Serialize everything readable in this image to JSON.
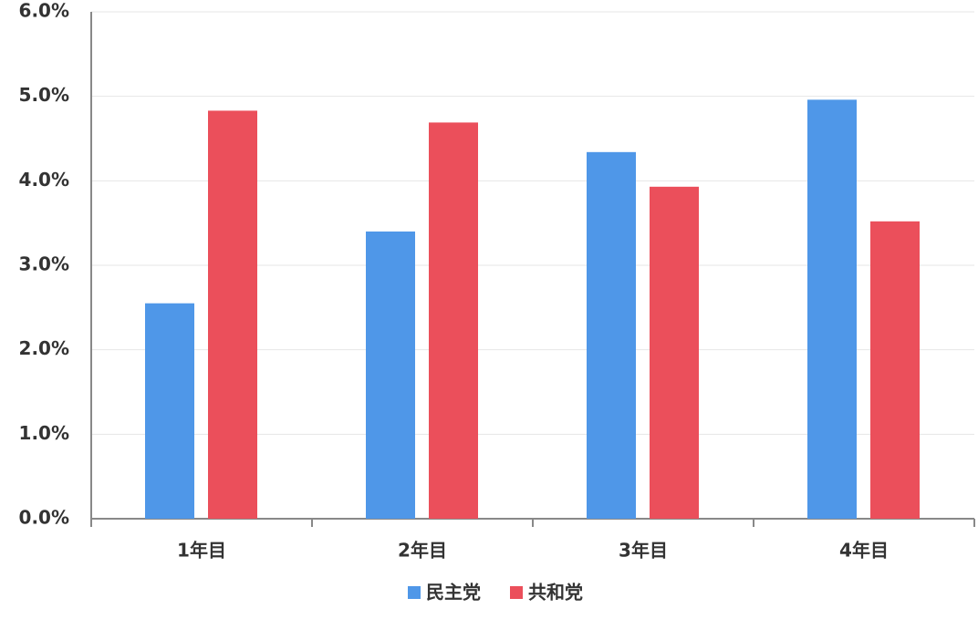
{
  "chart_data": {
    "type": "bar",
    "categories": [
      "1年目",
      "2年目",
      "3年目",
      "4年目"
    ],
    "series": [
      {
        "name": "民主党",
        "color": "#4f97e8",
        "values": [
          2.55,
          3.4,
          4.34,
          4.96
        ]
      },
      {
        "name": "共和党",
        "color": "#eb4f5b",
        "values": [
          4.83,
          4.69,
          3.93,
          3.52
        ]
      }
    ],
    "ylim": [
      0,
      6
    ],
    "yticks": [
      {
        "value": 0,
        "label": "0.0%"
      },
      {
        "value": 1,
        "label": "1.0%"
      },
      {
        "value": 2,
        "label": "2.0%"
      },
      {
        "value": 3,
        "label": "3.0%"
      },
      {
        "value": 4,
        "label": "4.0%"
      },
      {
        "value": 5,
        "label": "5.0%"
      },
      {
        "value": 6,
        "label": "6.0%"
      }
    ],
    "grid": true,
    "legend": "bottom"
  }
}
